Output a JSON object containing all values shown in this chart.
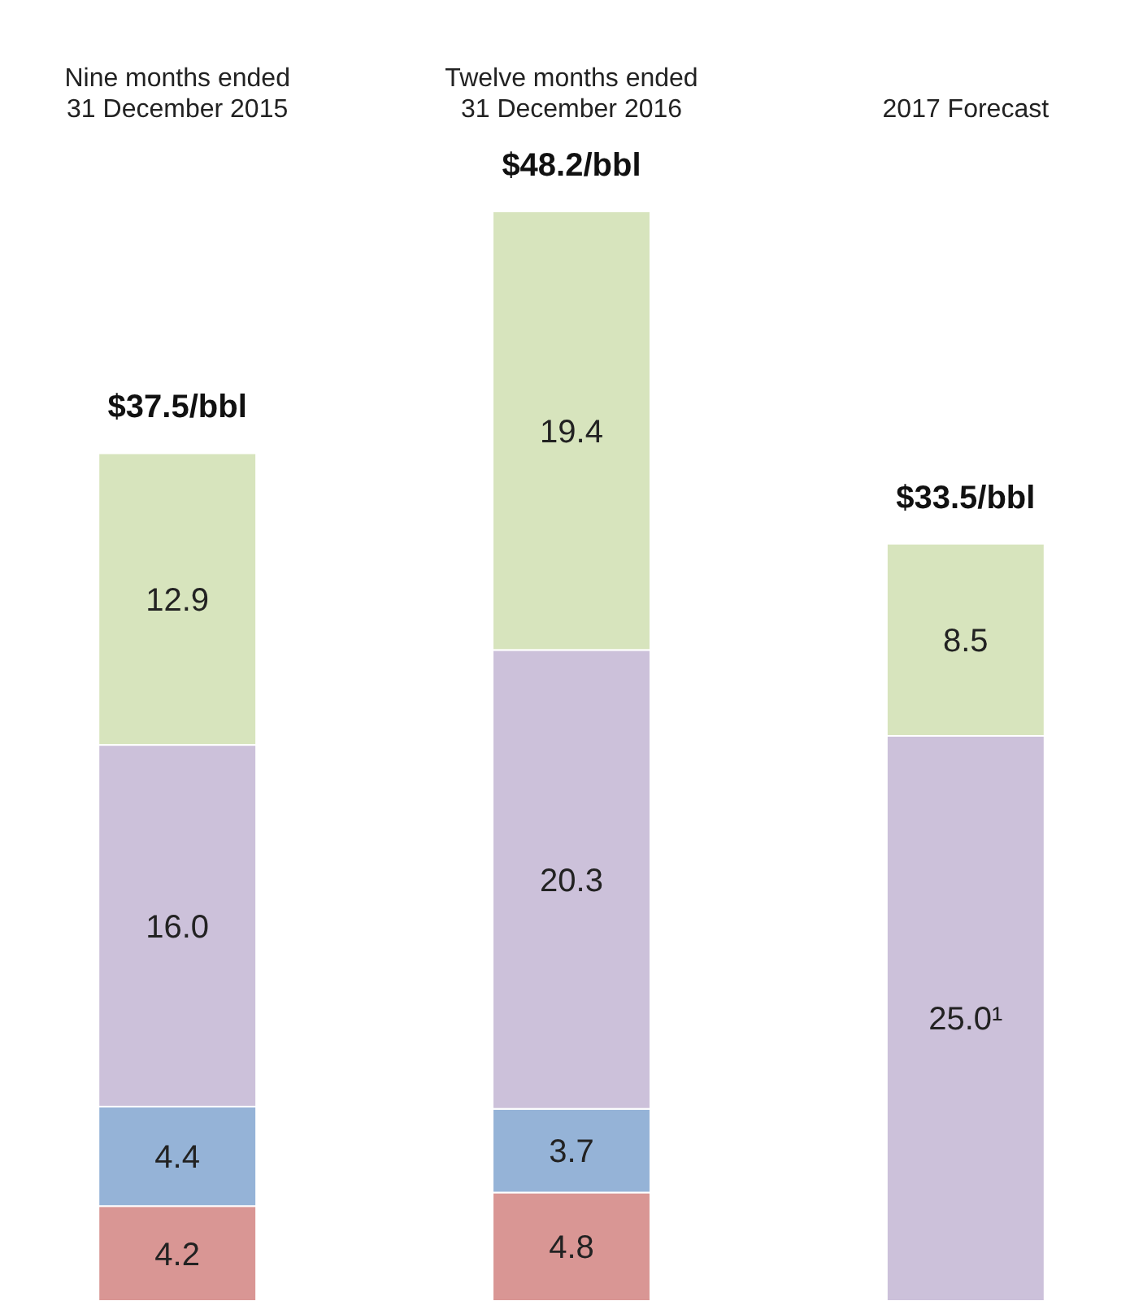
{
  "chart_data": {
    "type": "bar",
    "stacked": true,
    "categories": [
      "Nine months ended 31 December 2015",
      "Twelve months ended 31 December 2016",
      "2017 Forecast"
    ],
    "series": [
      {
        "color": "#d99694",
        "values": [
          4.2,
          4.8,
          null
        ],
        "value_labels": [
          "4.2",
          "4.8",
          null
        ]
      },
      {
        "color": "#95b3d7",
        "values": [
          4.4,
          3.7,
          null
        ],
        "value_labels": [
          "4.4",
          "3.7",
          null
        ]
      },
      {
        "color": "#ccc1da",
        "values": [
          16.0,
          20.3,
          25.0
        ],
        "value_labels": [
          "16.0",
          "20.3",
          "25.0¹"
        ]
      },
      {
        "color": "#d7e4bd",
        "values": [
          12.9,
          19.4,
          8.5
        ],
        "value_labels": [
          "12.9",
          "19.4",
          "8.5"
        ]
      }
    ],
    "totals": [
      "$37.5/bbl",
      "$48.2/bbl",
      "$33.5/bbl"
    ]
  }
}
